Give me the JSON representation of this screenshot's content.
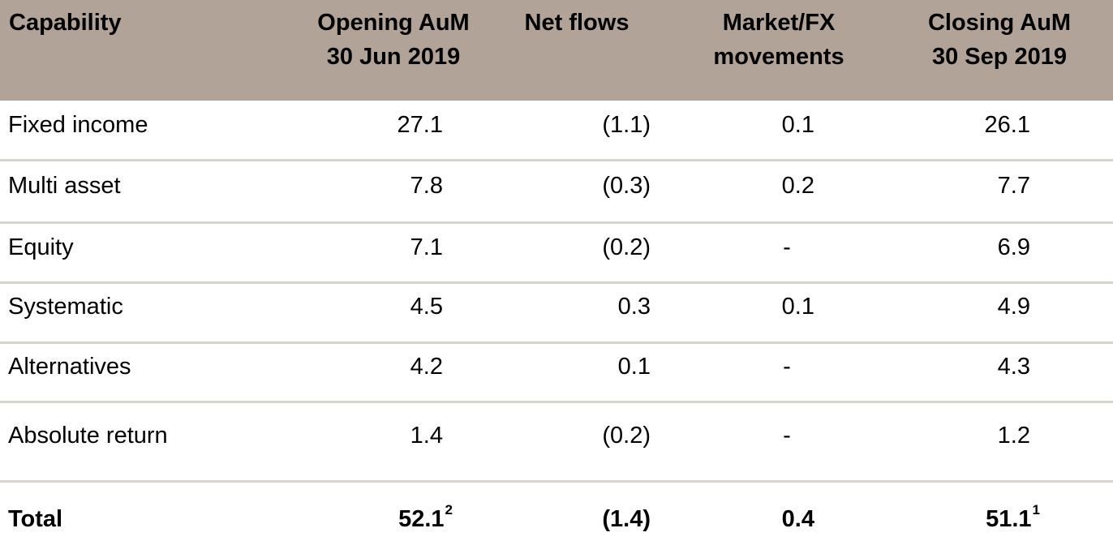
{
  "table": {
    "headers": {
      "capability": "Capability",
      "opening_line1": "Opening AuM",
      "opening_line2": "30 Jun 2019",
      "net_flows": "Net flows",
      "market_line1": "Market/FX",
      "market_line2": "movements",
      "closing_line1": "Closing AuM",
      "closing_line2": "30 Sep 2019"
    },
    "rows": [
      {
        "capability": "Fixed income",
        "opening": "27.1",
        "net_flows": "(1.1)",
        "market": "0.1",
        "closing": "26.1"
      },
      {
        "capability": "Multi asset",
        "opening": "7.8",
        "net_flows": "(0.3)",
        "market": "0.2",
        "closing": "7.7"
      },
      {
        "capability": "Equity",
        "opening": "7.1",
        "net_flows": "(0.2)",
        "market": "-",
        "closing": "6.9"
      },
      {
        "capability": "Systematic",
        "opening": "4.5",
        "net_flows": "0.3",
        "market": "0.1",
        "closing": "4.9"
      },
      {
        "capability": "Alternatives",
        "opening": "4.2",
        "net_flows": "0.1",
        "market": "-",
        "closing": "4.3"
      },
      {
        "capability": "Absolute return",
        "opening": "1.4",
        "net_flows": "(0.2)",
        "market": "-",
        "closing": "1.2"
      }
    ],
    "total": {
      "capability": "Total",
      "opening": "52.1",
      "opening_note": "2",
      "net_flows": "(1.4)",
      "market": "0.4",
      "closing": "51.1",
      "closing_note": "1"
    }
  },
  "colors": {
    "header_background": "#b1a397",
    "row_separator": "#d9d3ce",
    "text": "#000000"
  }
}
